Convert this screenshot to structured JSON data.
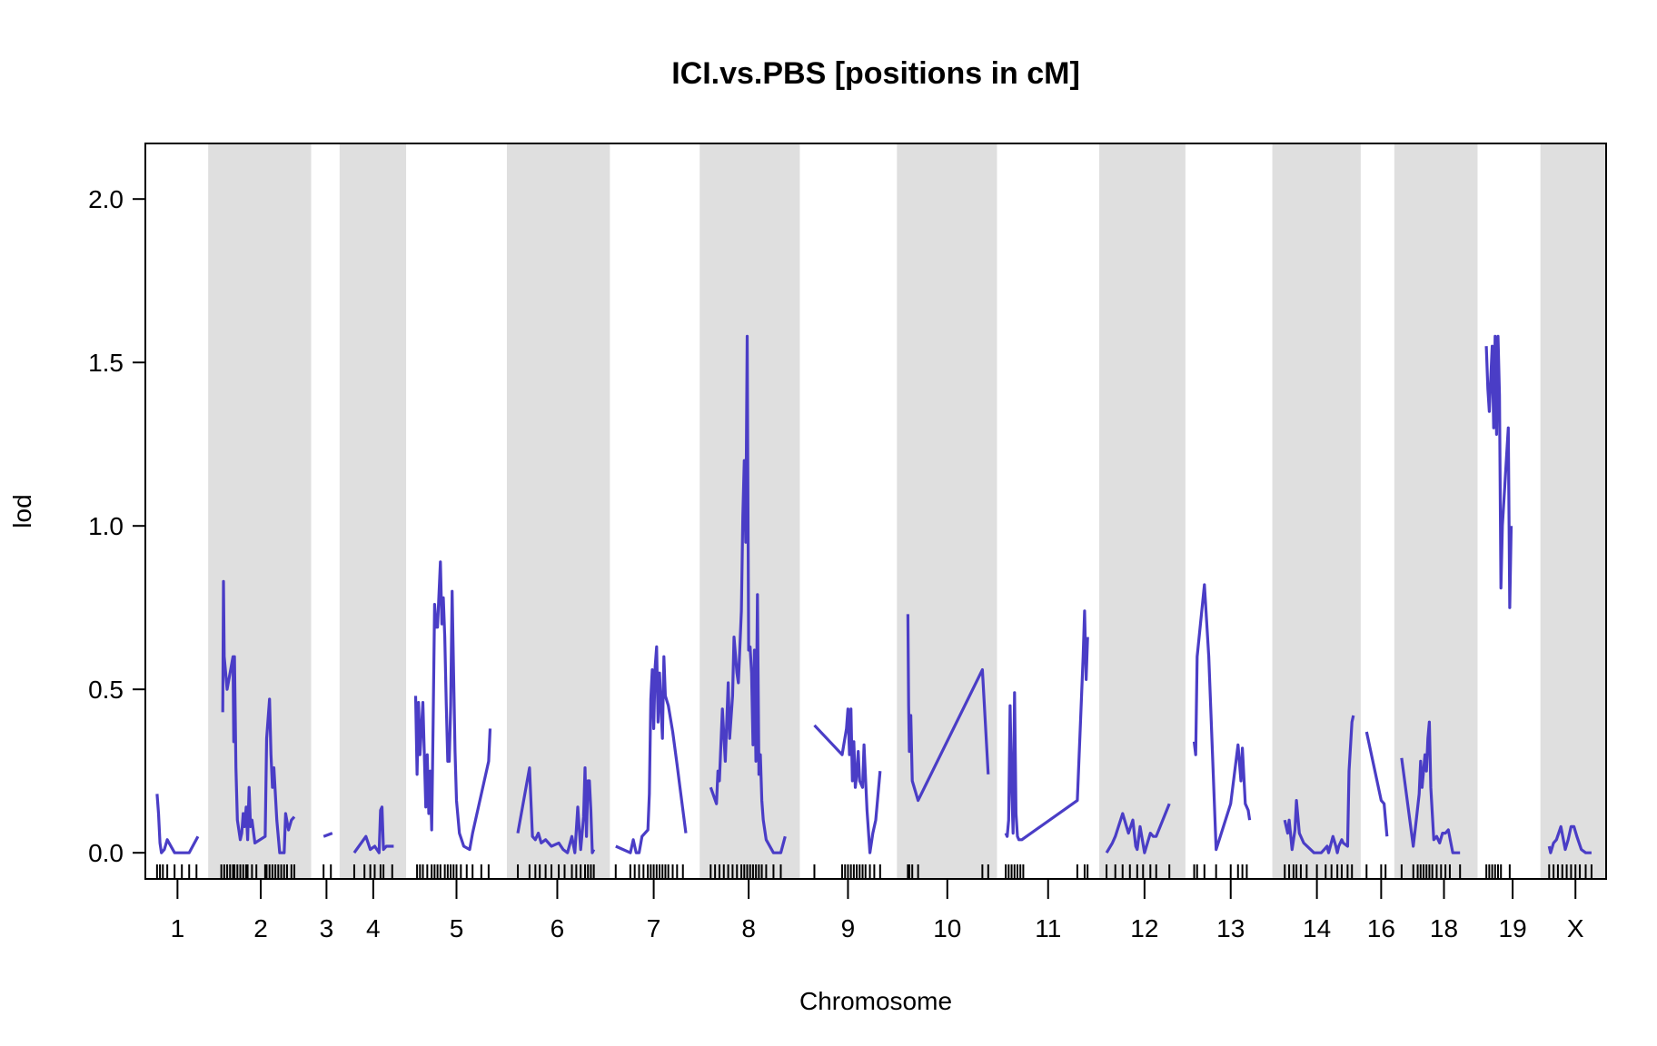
{
  "chart_data": {
    "type": "line",
    "title": "ICI.vs.PBS [positions in cM]",
    "xlabel": "Chromosome",
    "ylabel": "lod",
    "ylim": [
      -0.08,
      2.17
    ],
    "yticks": [
      0.0,
      0.5,
      1.0,
      1.5,
      2.0
    ],
    "ytick_labels": [
      "0.0",
      "0.5",
      "1.0",
      "1.5",
      "2.0"
    ],
    "xlim": [
      0,
      100
    ],
    "grid": false,
    "colors": {
      "line": "#4A3DC6",
      "band": "#DFDFDF",
      "rug": "#000000"
    },
    "chromosomes": [
      {
        "name": "1",
        "start": 0.0,
        "end": 4.3,
        "shaded": false,
        "label_x": 2.2
      },
      {
        "name": "2",
        "start": 4.3,
        "end": 11.35,
        "shaded": true,
        "label_x": 7.9
      },
      {
        "name": "3",
        "start": 11.35,
        "end": 13.3,
        "shaded": false,
        "label_x": 12.4
      },
      {
        "name": "4",
        "start": 13.3,
        "end": 17.85,
        "shaded": true,
        "label_x": 15.6
      },
      {
        "name": "5",
        "start": 17.85,
        "end": 24.75,
        "shaded": false,
        "label_x": 21.3
      },
      {
        "name": "6",
        "start": 24.75,
        "end": 31.8,
        "shaded": true,
        "label_x": 28.2
      },
      {
        "name": "7",
        "start": 31.8,
        "end": 37.95,
        "shaded": false,
        "label_x": 34.8
      },
      {
        "name": "8",
        "start": 37.95,
        "end": 44.8,
        "shaded": true,
        "label_x": 41.3
      },
      {
        "name": "9",
        "start": 44.8,
        "end": 51.45,
        "shaded": false,
        "label_x": 48.1
      },
      {
        "name": "10",
        "start": 51.45,
        "end": 58.3,
        "shaded": true,
        "label_x": 54.9
      },
      {
        "name": "11",
        "start": 58.3,
        "end": 65.3,
        "shaded": false,
        "label_x": 61.8
      },
      {
        "name": "12",
        "start": 65.3,
        "end": 71.2,
        "shaded": true,
        "label_x": 68.4
      },
      {
        "name": "13",
        "start": 71.2,
        "end": 77.15,
        "shaded": false,
        "label_x": 74.3
      },
      {
        "name": "14",
        "start": 77.15,
        "end": 83.2,
        "shaded": true,
        "label_x": 80.2
      },
      {
        "name": "16",
        "start": 83.2,
        "end": 85.5,
        "shaded": false,
        "label_x": 84.6
      },
      {
        "name": "18",
        "start": 85.5,
        "end": 91.2,
        "shaded": true,
        "label_x": 88.9
      },
      {
        "name": "19",
        "start": 91.2,
        "end": 95.5,
        "shaded": false,
        "label_x": 93.6
      },
      {
        "name": "X",
        "start": 95.5,
        "end": 100.0,
        "shaded": true,
        "label_x": 97.9
      }
    ],
    "series": [
      {
        "chr": "1",
        "x": [
          0.8,
          0.9,
          1.0,
          1.1,
          1.3,
          1.5,
          2.0,
          3.0,
          3.6
        ],
        "y": [
          0.18,
          0.12,
          0.03,
          0.0,
          0.01,
          0.04,
          0.0,
          0.0,
          0.05
        ]
      },
      {
        "chr": "2",
        "x": [
          5.3,
          5.35,
          5.4,
          5.6,
          6.0,
          6.05,
          6.1,
          6.2,
          6.3,
          6.5,
          6.6,
          6.7,
          6.8,
          6.9,
          7.0,
          7.1,
          7.2,
          7.3,
          7.5,
          8.2,
          8.3,
          8.5,
          8.6,
          8.7,
          8.8,
          9.0,
          9.2,
          9.5,
          9.6,
          9.8,
          10.0,
          10.2
        ],
        "y": [
          0.43,
          0.83,
          0.6,
          0.5,
          0.6,
          0.34,
          0.6,
          0.26,
          0.1,
          0.04,
          0.06,
          0.12,
          0.08,
          0.14,
          0.04,
          0.2,
          0.08,
          0.1,
          0.03,
          0.05,
          0.35,
          0.47,
          0.3,
          0.2,
          0.26,
          0.1,
          0.0,
          0.0,
          0.12,
          0.07,
          0.1,
          0.11
        ]
      },
      {
        "chr": "3",
        "x": [
          12.2,
          12.8
        ],
        "y": [
          0.05,
          0.06
        ]
      },
      {
        "chr": "4",
        "x": [
          14.3,
          15.1,
          15.4,
          15.7,
          16.0,
          16.1,
          16.2,
          16.3,
          16.5,
          17.0
        ],
        "y": [
          0.0,
          0.05,
          0.01,
          0.02,
          0.0,
          0.13,
          0.14,
          0.01,
          0.02,
          0.02
        ]
      },
      {
        "chr": "5",
        "x": [
          18.5,
          18.6,
          18.7,
          18.8,
          19.0,
          19.2,
          19.3,
          19.4,
          19.5,
          19.6,
          19.7,
          19.8,
          19.9,
          20.0,
          20.2,
          20.3,
          20.4,
          20.5,
          20.6,
          20.7,
          20.8,
          20.9,
          21.0,
          21.1,
          21.2,
          21.3,
          21.5,
          21.8,
          22.2,
          22.4,
          23.5,
          23.6
        ],
        "y": [
          0.48,
          0.24,
          0.46,
          0.3,
          0.46,
          0.14,
          0.3,
          0.12,
          0.25,
          0.07,
          0.4,
          0.76,
          0.69,
          0.69,
          0.89,
          0.7,
          0.78,
          0.66,
          0.46,
          0.28,
          0.28,
          0.45,
          0.8,
          0.55,
          0.31,
          0.16,
          0.06,
          0.02,
          0.01,
          0.06,
          0.28,
          0.38
        ]
      },
      {
        "chr": "6",
        "x": [
          25.5,
          26.3,
          26.5,
          26.7,
          26.9,
          27.1,
          27.4,
          27.8,
          28.3,
          28.6,
          28.9,
          29.2,
          29.4,
          29.6,
          29.8,
          30.0,
          30.1,
          30.2,
          30.3,
          30.4,
          30.5,
          30.6,
          30.7
        ],
        "y": [
          0.06,
          0.26,
          0.05,
          0.04,
          0.06,
          0.03,
          0.04,
          0.02,
          0.03,
          0.01,
          0.0,
          0.05,
          0.0,
          0.14,
          0.01,
          0.11,
          0.26,
          0.05,
          0.22,
          0.22,
          0.13,
          0.0,
          0.01
        ]
      },
      {
        "chr": "7",
        "x": [
          32.2,
          33.2,
          33.4,
          33.6,
          33.8,
          34.0,
          34.4,
          34.5,
          34.6,
          34.7,
          34.8,
          34.9,
          35.0,
          35.1,
          35.2,
          35.4,
          35.5,
          35.6,
          35.8,
          36.1,
          36.4,
          36.6,
          37.0
        ],
        "y": [
          0.02,
          0.0,
          0.04,
          0.0,
          0.0,
          0.05,
          0.07,
          0.18,
          0.47,
          0.56,
          0.38,
          0.57,
          0.63,
          0.4,
          0.55,
          0.35,
          0.6,
          0.48,
          0.45,
          0.37,
          0.27,
          0.2,
          0.06
        ]
      },
      {
        "chr": "8",
        "x": [
          38.7,
          39.1,
          39.2,
          39.3,
          39.5,
          39.7,
          39.9,
          40.0,
          40.2,
          40.3,
          40.5,
          40.6,
          40.8,
          40.9,
          41.0,
          41.1,
          41.2,
          41.3,
          41.4,
          41.5,
          41.6,
          41.7,
          41.8,
          41.9,
          42.0,
          42.1,
          42.2,
          42.3,
          42.5,
          43.0,
          43.5,
          43.8
        ],
        "y": [
          0.2,
          0.15,
          0.25,
          0.22,
          0.44,
          0.28,
          0.52,
          0.35,
          0.48,
          0.66,
          0.55,
          0.52,
          0.74,
          1.03,
          1.2,
          0.95,
          1.58,
          0.62,
          0.63,
          0.55,
          0.33,
          0.62,
          0.28,
          0.79,
          0.24,
          0.3,
          0.16,
          0.1,
          0.04,
          0.0,
          0.0,
          0.05
        ]
      },
      {
        "chr": "9",
        "x": [
          45.8,
          47.7,
          48.0,
          48.1,
          48.2,
          48.3,
          48.4,
          48.5,
          48.6,
          48.7,
          48.8,
          48.9,
          49.1,
          49.2,
          49.4,
          49.6,
          49.8,
          50.0,
          50.3
        ],
        "y": [
          0.39,
          0.3,
          0.38,
          0.44,
          0.3,
          0.44,
          0.22,
          0.34,
          0.2,
          0.24,
          0.31,
          0.22,
          0.2,
          0.33,
          0.13,
          0.0,
          0.06,
          0.1,
          0.25
        ]
      },
      {
        "chr": "10",
        "x": [
          52.2,
          52.25,
          52.3,
          52.4,
          52.5,
          52.9,
          57.3,
          57.7
        ],
        "y": [
          0.73,
          0.45,
          0.31,
          0.42,
          0.22,
          0.16,
          0.56,
          0.24
        ]
      },
      {
        "chr": "11",
        "x": [
          58.9,
          59.0,
          59.1,
          59.2,
          59.3,
          59.4,
          59.5,
          59.6,
          59.7,
          59.8,
          60.0,
          63.8,
          64.2,
          64.3,
          64.4,
          64.5
        ],
        "y": [
          0.06,
          0.05,
          0.1,
          0.45,
          0.22,
          0.06,
          0.49,
          0.12,
          0.05,
          0.04,
          0.04,
          0.16,
          0.6,
          0.74,
          0.53,
          0.66
        ]
      },
      {
        "chr": "12",
        "x": [
          65.8,
          66.2,
          66.4,
          66.9,
          67.3,
          67.6,
          67.8,
          67.9,
          68.1,
          68.4,
          68.8,
          69.0,
          69.2,
          70.1
        ],
        "y": [
          0.0,
          0.03,
          0.05,
          0.12,
          0.06,
          0.1,
          0.02,
          0.01,
          0.08,
          0.0,
          0.06,
          0.05,
          0.05,
          0.15
        ]
      },
      {
        "chr": "13",
        "x": [
          71.8,
          71.9,
          72.0,
          72.5,
          72.8,
          73.3,
          74.3,
          74.8,
          75.0,
          75.1,
          75.3,
          75.5,
          75.6
        ],
        "y": [
          0.34,
          0.3,
          0.6,
          0.82,
          0.6,
          0.01,
          0.15,
          0.33,
          0.22,
          0.32,
          0.15,
          0.13,
          0.1
        ]
      },
      {
        "chr": "14",
        "x": [
          78.0,
          78.2,
          78.3,
          78.5,
          78.7,
          78.8,
          79.0,
          79.3,
          80.0,
          80.5,
          80.7,
          80.9,
          81.0,
          81.3,
          81.5,
          81.6,
          81.7,
          81.9,
          82.0,
          82.3,
          82.4,
          82.6,
          82.7
        ],
        "y": [
          0.1,
          0.06,
          0.1,
          0.01,
          0.07,
          0.16,
          0.06,
          0.03,
          0.0,
          0.0,
          0.01,
          0.02,
          0.0,
          0.05,
          0.02,
          0.0,
          0.02,
          0.04,
          0.03,
          0.02,
          0.25,
          0.4,
          0.42
        ]
      },
      {
        "chr": "16",
        "x": [
          83.6,
          84.6,
          84.8,
          84.9,
          85.0
        ],
        "y": [
          0.37,
          0.16,
          0.15,
          0.1,
          0.05
        ]
      },
      {
        "chr": "18",
        "x": [
          86.0,
          86.8,
          87.0,
          87.2,
          87.3,
          87.4,
          87.5,
          87.6,
          87.7,
          87.8,
          87.9,
          88.0,
          88.2,
          88.4,
          88.6,
          88.8,
          89.0,
          89.2,
          89.5,
          90.0
        ],
        "y": [
          0.29,
          0.02,
          0.1,
          0.18,
          0.28,
          0.2,
          0.25,
          0.3,
          0.25,
          0.35,
          0.4,
          0.2,
          0.04,
          0.05,
          0.03,
          0.06,
          0.06,
          0.07,
          0.0,
          0.0
        ]
      },
      {
        "chr": "19",
        "x": [
          91.8,
          91.9,
          92.0,
          92.1,
          92.2,
          92.3,
          92.4,
          92.5,
          92.6,
          92.7,
          92.8,
          92.9,
          93.3,
          93.4,
          93.5
        ],
        "y": [
          1.55,
          1.42,
          1.35,
          1.45,
          1.55,
          1.3,
          1.58,
          1.28,
          1.58,
          1.4,
          0.81,
          1.0,
          1.3,
          0.75,
          1.0
        ]
      },
      {
        "chr": "X",
        "x": [
          96.1,
          96.2,
          96.4,
          96.6,
          96.9,
          97.2,
          97.4,
          97.6,
          97.8,
          98.0,
          98.3,
          98.6,
          99.0
        ],
        "y": [
          0.02,
          0.0,
          0.03,
          0.04,
          0.08,
          0.01,
          0.04,
          0.08,
          0.08,
          0.05,
          0.01,
          0.0,
          0.0
        ]
      }
    ],
    "markers": [
      0.8,
      1.0,
      1.2,
      1.5,
      2.0,
      2.5,
      3.0,
      3.5,
      5.2,
      5.4,
      5.6,
      5.8,
      6.0,
      6.1,
      6.3,
      6.5,
      6.7,
      6.9,
      7.0,
      7.3,
      7.6,
      8.2,
      8.3,
      8.5,
      8.7,
      8.9,
      9.1,
      9.3,
      9.5,
      9.7,
      10.0,
      10.2,
      12.2,
      12.7,
      14.3,
      15.0,
      15.4,
      15.7,
      16.1,
      16.3,
      16.9,
      18.6,
      18.8,
      19.0,
      19.3,
      19.6,
      19.8,
      20.0,
      20.2,
      20.5,
      20.7,
      20.9,
      21.1,
      21.3,
      21.6,
      22.0,
      22.4,
      23.0,
      23.5,
      25.5,
      26.3,
      26.7,
      27.0,
      27.4,
      27.8,
      28.3,
      28.7,
      29.2,
      29.5,
      29.8,
      30.1,
      30.3,
      30.5,
      30.7,
      32.2,
      33.2,
      33.5,
      33.8,
      34.1,
      34.4,
      34.6,
      34.8,
      35.0,
      35.2,
      35.4,
      35.6,
      35.8,
      36.1,
      36.4,
      36.8,
      38.7,
      39.0,
      39.3,
      39.6,
      39.9,
      40.2,
      40.5,
      40.8,
      41.0,
      41.2,
      41.4,
      41.6,
      41.8,
      42.0,
      42.2,
      42.5,
      43.0,
      43.5,
      45.8,
      47.7,
      47.9,
      48.1,
      48.3,
      48.5,
      48.7,
      48.9,
      49.1,
      49.3,
      49.6,
      49.9,
      50.3,
      52.2,
      52.3,
      52.5,
      52.9,
      57.3,
      57.7,
      58.9,
      59.1,
      59.3,
      59.5,
      59.7,
      59.9,
      60.1,
      63.8,
      64.3,
      64.5,
      65.8,
      66.4,
      66.9,
      67.4,
      67.9,
      68.3,
      68.8,
      69.2,
      70.1,
      71.8,
      72.0,
      72.5,
      73.3,
      74.3,
      74.8,
      75.1,
      75.4,
      78.0,
      78.3,
      78.6,
      78.8,
      79.1,
      79.5,
      80.2,
      80.8,
      81.2,
      81.6,
      81.9,
      82.3,
      82.6,
      83.6,
      84.6,
      84.9,
      86.0,
      86.8,
      87.1,
      87.3,
      87.5,
      87.7,
      87.9,
      88.1,
      88.4,
      88.7,
      89.0,
      89.3,
      90.0,
      91.8,
      92.0,
      92.2,
      92.4,
      92.6,
      92.8,
      93.4,
      96.1,
      96.4,
      96.7,
      97.0,
      97.3,
      97.6,
      97.9,
      98.2,
      98.6,
      99.0
    ]
  }
}
